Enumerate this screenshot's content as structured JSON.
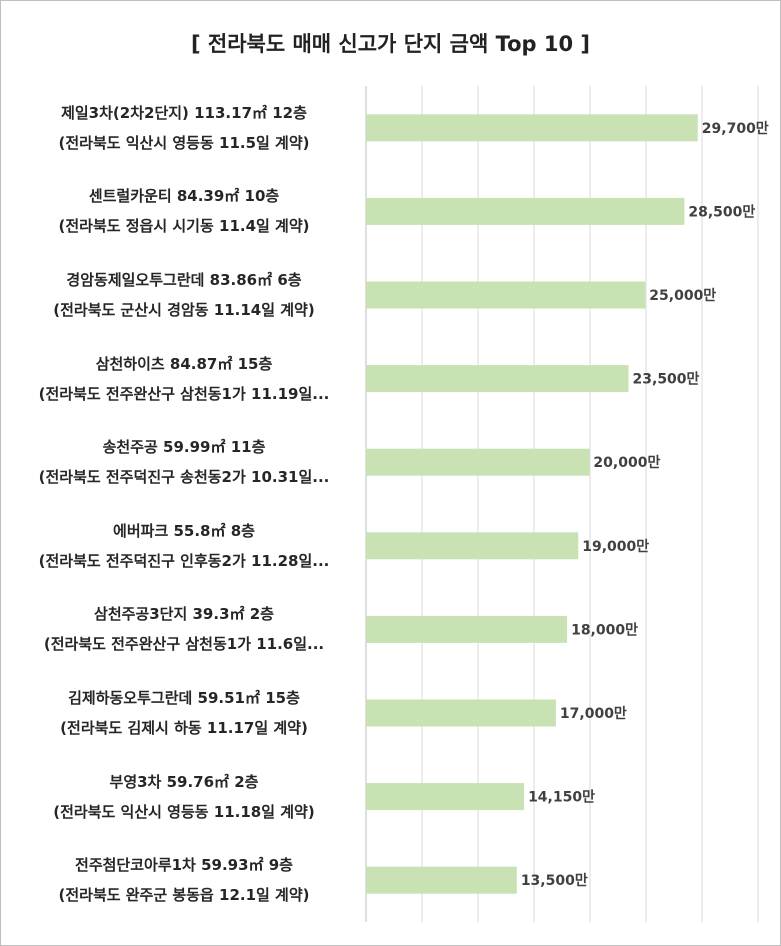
{
  "chart_data": {
    "type": "bar",
    "orientation": "horizontal",
    "title": "[ 전라북도 매매 신고가 단지 금액 Top 10 ]",
    "xlabel": "",
    "ylabel": "",
    "xlim": [
      0,
      35000
    ],
    "grid": true,
    "bar_color": "#c9e2b3",
    "categories": [
      {
        "line1": "제일3차(2차2단지) 113.17㎡ 12층",
        "line2": "(전라북도 익산시 영등동 11.5일 계약)"
      },
      {
        "line1": "센트럴카운티 84.39㎡ 10층",
        "line2": "(전라북도 정읍시 시기동 11.4일 계약)"
      },
      {
        "line1": "경암동제일오투그란데 83.86㎡ 6층",
        "line2": "(전라북도 군산시 경암동 11.14일 계약)"
      },
      {
        "line1": "삼천하이츠 84.87㎡ 15층",
        "line2": "(전라북도 전주완산구 삼천동1가 11.19일..."
      },
      {
        "line1": "송천주공 59.99㎡ 11층",
        "line2": "(전라북도 전주덕진구 송천동2가 10.31일..."
      },
      {
        "line1": "에버파크 55.8㎡ 8층",
        "line2": "(전라북도 전주덕진구 인후동2가 11.28일..."
      },
      {
        "line1": "삼천주공3단지 39.3㎡ 2층",
        "line2": "(전라북도 전주완산구 삼천동1가 11.6일..."
      },
      {
        "line1": "김제하동오투그란데 59.51㎡ 15층",
        "line2": "(전라북도 김제시 하동 11.17일 계약)"
      },
      {
        "line1": "부영3차 59.76㎡ 2층",
        "line2": "(전라북도 익산시 영등동 11.18일 계약)"
      },
      {
        "line1": "전주첨단코아루1차 59.93㎡ 9층",
        "line2": "(전라북도 완주군 봉동읍 12.1일 계약)"
      }
    ],
    "values": [
      29700,
      28500,
      25000,
      23500,
      20000,
      19000,
      18000,
      17000,
      14150,
      13500
    ],
    "value_labels": [
      "29,700만",
      "28,500만",
      "25,000만",
      "23,500만",
      "20,000만",
      "19,000만",
      "18,000만",
      "17,000만",
      "14,150만",
      "13,500만"
    ]
  }
}
